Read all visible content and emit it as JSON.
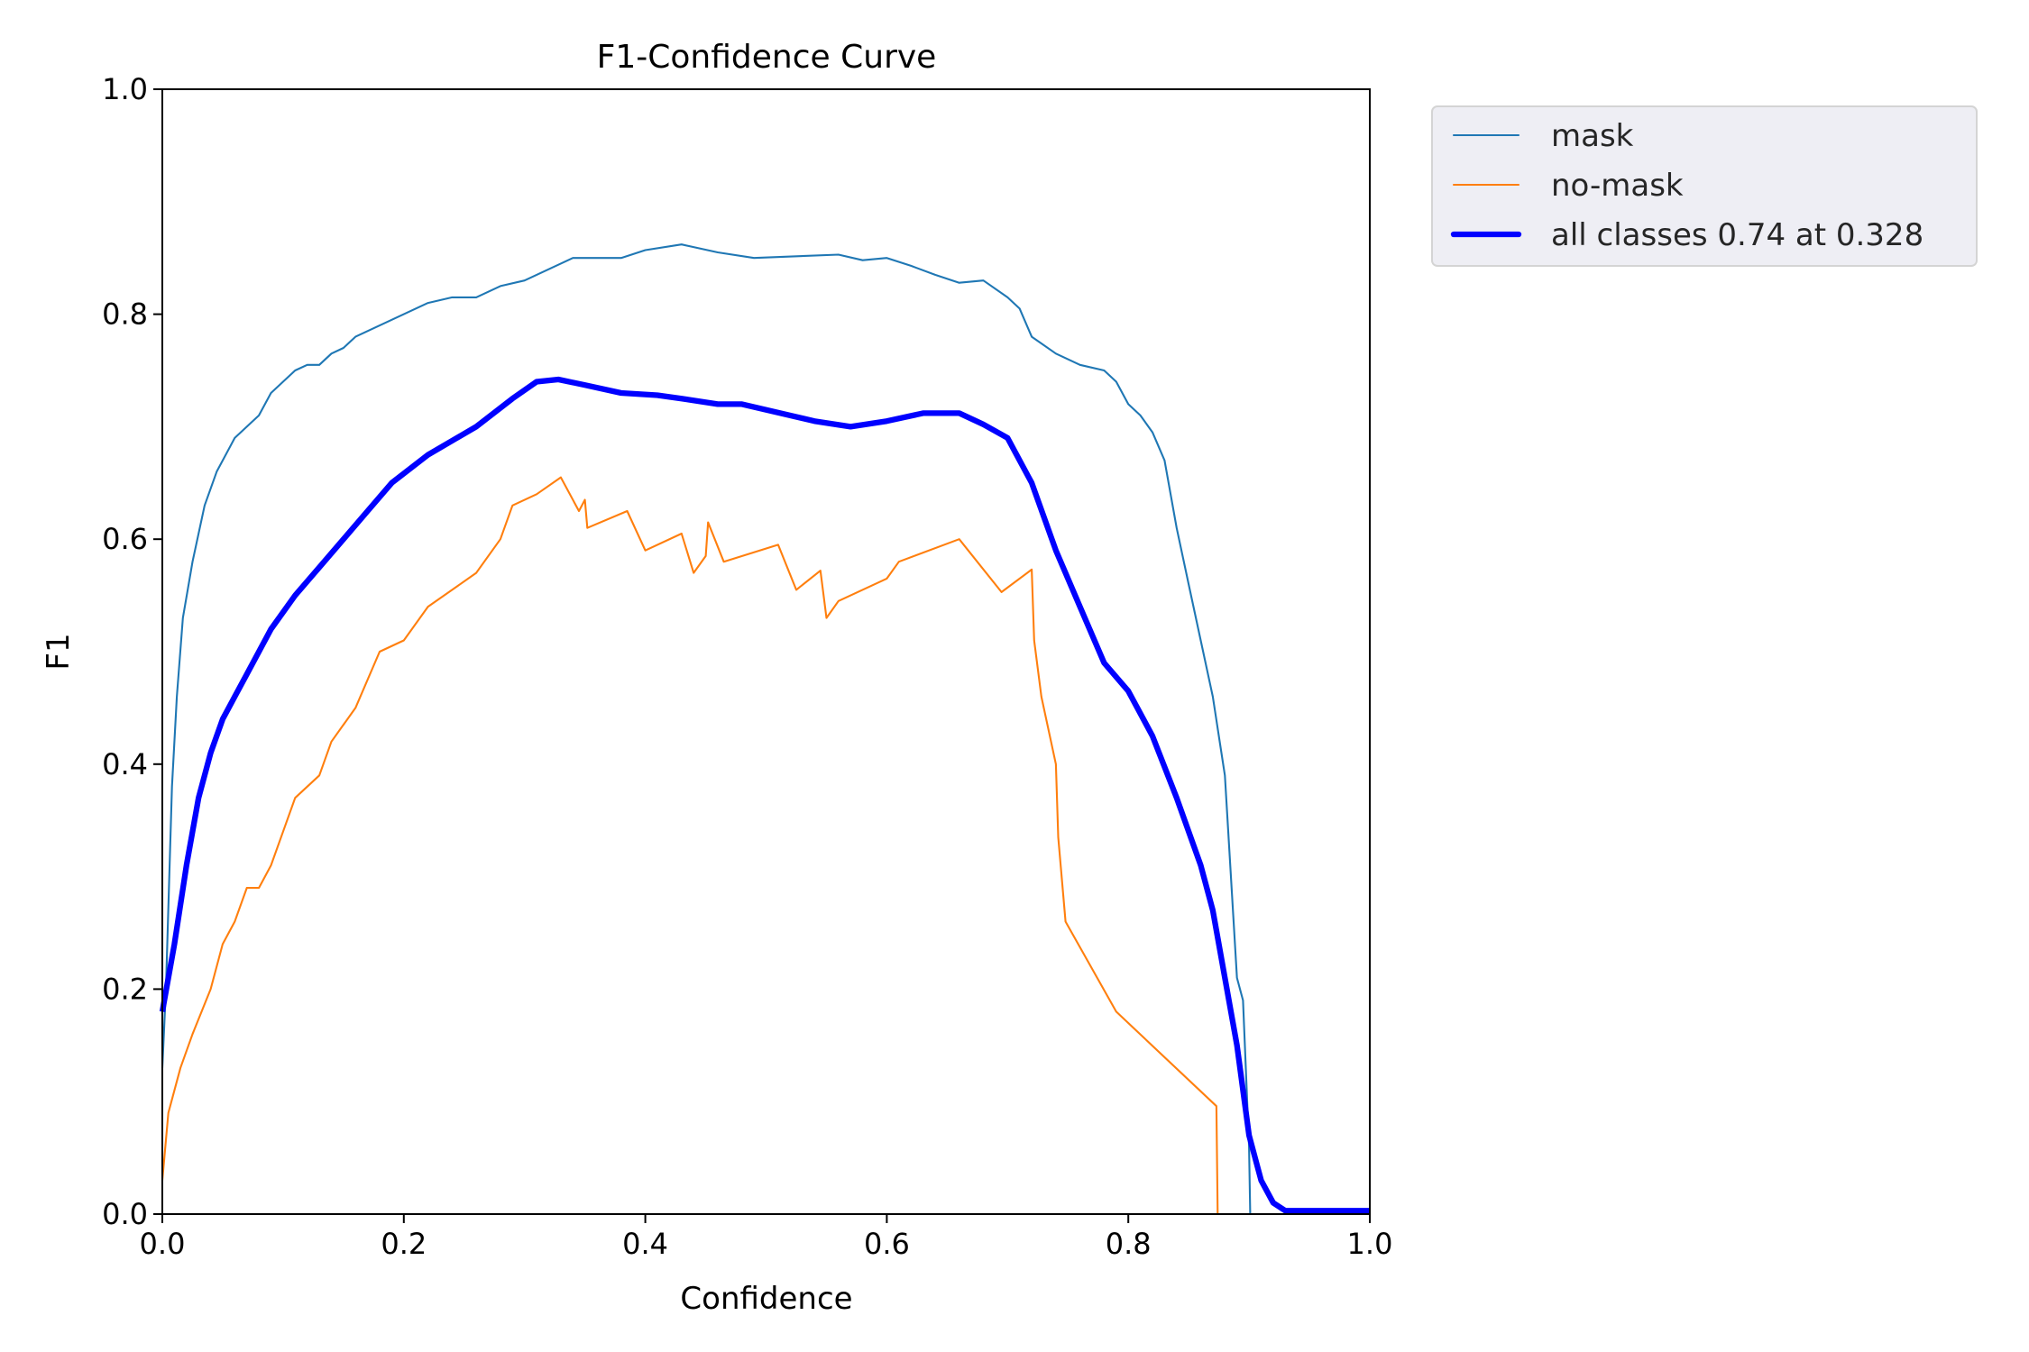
{
  "chart_data": {
    "type": "line",
    "title": "F1-Confidence Curve",
    "xlabel": "Confidence",
    "ylabel": "F1",
    "xlim": [
      0,
      1
    ],
    "ylim": [
      0,
      1
    ],
    "xticks": [
      "0.0",
      "0.2",
      "0.4",
      "0.6",
      "0.8",
      "1.0"
    ],
    "yticks": [
      "0.0",
      "0.2",
      "0.4",
      "0.6",
      "0.8",
      "1.0"
    ],
    "grid": false,
    "legend_placement": "outside-top-right",
    "series": [
      {
        "name": "mask",
        "color": "#1f77b4",
        "width": 1,
        "points": [
          [
            0,
            0.13
          ],
          [
            0.003,
            0.2
          ],
          [
            0.008,
            0.38
          ],
          [
            0.012,
            0.46
          ],
          [
            0.017,
            0.53
          ],
          [
            0.025,
            0.58
          ],
          [
            0.035,
            0.63
          ],
          [
            0.045,
            0.66
          ],
          [
            0.06,
            0.69
          ],
          [
            0.07,
            0.7
          ],
          [
            0.08,
            0.71
          ],
          [
            0.09,
            0.73
          ],
          [
            0.1,
            0.74
          ],
          [
            0.11,
            0.75
          ],
          [
            0.12,
            0.755
          ],
          [
            0.13,
            0.755
          ],
          [
            0.14,
            0.765
          ],
          [
            0.15,
            0.77
          ],
          [
            0.16,
            0.78
          ],
          [
            0.18,
            0.79
          ],
          [
            0.2,
            0.8
          ],
          [
            0.22,
            0.81
          ],
          [
            0.24,
            0.815
          ],
          [
            0.26,
            0.815
          ],
          [
            0.28,
            0.825
          ],
          [
            0.3,
            0.83
          ],
          [
            0.32,
            0.84
          ],
          [
            0.34,
            0.85
          ],
          [
            0.36,
            0.85
          ],
          [
            0.38,
            0.85
          ],
          [
            0.4,
            0.857
          ],
          [
            0.43,
            0.862
          ],
          [
            0.46,
            0.855
          ],
          [
            0.49,
            0.85
          ],
          [
            0.56,
            0.853
          ],
          [
            0.58,
            0.848
          ],
          [
            0.6,
            0.85
          ],
          [
            0.62,
            0.843
          ],
          [
            0.64,
            0.835
          ],
          [
            0.66,
            0.828
          ],
          [
            0.68,
            0.83
          ],
          [
            0.7,
            0.815
          ],
          [
            0.71,
            0.805
          ],
          [
            0.72,
            0.78
          ],
          [
            0.74,
            0.765
          ],
          [
            0.76,
            0.755
          ],
          [
            0.78,
            0.75
          ],
          [
            0.79,
            0.74
          ],
          [
            0.8,
            0.72
          ],
          [
            0.81,
            0.71
          ],
          [
            0.82,
            0.695
          ],
          [
            0.83,
            0.67
          ],
          [
            0.84,
            0.61
          ],
          [
            0.85,
            0.56
          ],
          [
            0.86,
            0.51
          ],
          [
            0.87,
            0.46
          ],
          [
            0.88,
            0.39
          ],
          [
            0.885,
            0.3
          ],
          [
            0.89,
            0.21
          ],
          [
            0.895,
            0.19
          ],
          [
            0.9,
            0.06
          ],
          [
            0.901,
            0.0
          ],
          [
            1.0,
            0.0
          ]
        ]
      },
      {
        "name": "no-mask",
        "color": "#ff7f0e",
        "width": 1,
        "points": [
          [
            0,
            0.03
          ],
          [
            0.005,
            0.09
          ],
          [
            0.015,
            0.13
          ],
          [
            0.025,
            0.16
          ],
          [
            0.04,
            0.2
          ],
          [
            0.05,
            0.24
          ],
          [
            0.06,
            0.26
          ],
          [
            0.07,
            0.29
          ],
          [
            0.08,
            0.29
          ],
          [
            0.09,
            0.31
          ],
          [
            0.1,
            0.34
          ],
          [
            0.11,
            0.37
          ],
          [
            0.13,
            0.39
          ],
          [
            0.14,
            0.42
          ],
          [
            0.16,
            0.45
          ],
          [
            0.18,
            0.5
          ],
          [
            0.2,
            0.51
          ],
          [
            0.22,
            0.54
          ],
          [
            0.24,
            0.555
          ],
          [
            0.26,
            0.57
          ],
          [
            0.28,
            0.6
          ],
          [
            0.29,
            0.63
          ],
          [
            0.31,
            0.64
          ],
          [
            0.33,
            0.655
          ],
          [
            0.345,
            0.625
          ],
          [
            0.35,
            0.635
          ],
          [
            0.352,
            0.61
          ],
          [
            0.385,
            0.625
          ],
          [
            0.4,
            0.59
          ],
          [
            0.43,
            0.605
          ],
          [
            0.44,
            0.57
          ],
          [
            0.45,
            0.585
          ],
          [
            0.452,
            0.615
          ],
          [
            0.465,
            0.58
          ],
          [
            0.51,
            0.595
          ],
          [
            0.525,
            0.555
          ],
          [
            0.545,
            0.572
          ],
          [
            0.55,
            0.53
          ],
          [
            0.56,
            0.545
          ],
          [
            0.6,
            0.565
          ],
          [
            0.61,
            0.58
          ],
          [
            0.66,
            0.6
          ],
          [
            0.695,
            0.553
          ],
          [
            0.72,
            0.573
          ],
          [
            0.722,
            0.51
          ],
          [
            0.728,
            0.46
          ],
          [
            0.74,
            0.4
          ],
          [
            0.742,
            0.335
          ],
          [
            0.748,
            0.26
          ],
          [
            0.79,
            0.18
          ],
          [
            0.873,
            0.096
          ],
          [
            0.874,
            0.0
          ],
          [
            0.9,
            0.0
          ]
        ]
      },
      {
        "name": "all classes 0.74 at 0.328",
        "color": "#0000ff",
        "width": 3,
        "points": [
          [
            0,
            0.18
          ],
          [
            0.01,
            0.24
          ],
          [
            0.02,
            0.31
          ],
          [
            0.03,
            0.37
          ],
          [
            0.04,
            0.41
          ],
          [
            0.05,
            0.44
          ],
          [
            0.06,
            0.46
          ],
          [
            0.07,
            0.48
          ],
          [
            0.09,
            0.52
          ],
          [
            0.11,
            0.55
          ],
          [
            0.13,
            0.575
          ],
          [
            0.15,
            0.6
          ],
          [
            0.17,
            0.625
          ],
          [
            0.19,
            0.65
          ],
          [
            0.22,
            0.675
          ],
          [
            0.26,
            0.7
          ],
          [
            0.29,
            0.725
          ],
          [
            0.31,
            0.74
          ],
          [
            0.328,
            0.742
          ],
          [
            0.35,
            0.737
          ],
          [
            0.38,
            0.73
          ],
          [
            0.41,
            0.728
          ],
          [
            0.43,
            0.725
          ],
          [
            0.46,
            0.72
          ],
          [
            0.48,
            0.72
          ],
          [
            0.5,
            0.715
          ],
          [
            0.52,
            0.71
          ],
          [
            0.54,
            0.705
          ],
          [
            0.57,
            0.7
          ],
          [
            0.6,
            0.705
          ],
          [
            0.63,
            0.712
          ],
          [
            0.66,
            0.712
          ],
          [
            0.68,
            0.702
          ],
          [
            0.7,
            0.69
          ],
          [
            0.72,
            0.65
          ],
          [
            0.74,
            0.59
          ],
          [
            0.76,
            0.54
          ],
          [
            0.78,
            0.49
          ],
          [
            0.8,
            0.465
          ],
          [
            0.82,
            0.425
          ],
          [
            0.84,
            0.37
          ],
          [
            0.86,
            0.31
          ],
          [
            0.87,
            0.27
          ],
          [
            0.88,
            0.21
          ],
          [
            0.89,
            0.15
          ],
          [
            0.9,
            0.07
          ],
          [
            0.91,
            0.03
          ],
          [
            0.92,
            0.01
          ],
          [
            0.93,
            0.003
          ],
          [
            1.0,
            0.003
          ]
        ]
      }
    ]
  }
}
